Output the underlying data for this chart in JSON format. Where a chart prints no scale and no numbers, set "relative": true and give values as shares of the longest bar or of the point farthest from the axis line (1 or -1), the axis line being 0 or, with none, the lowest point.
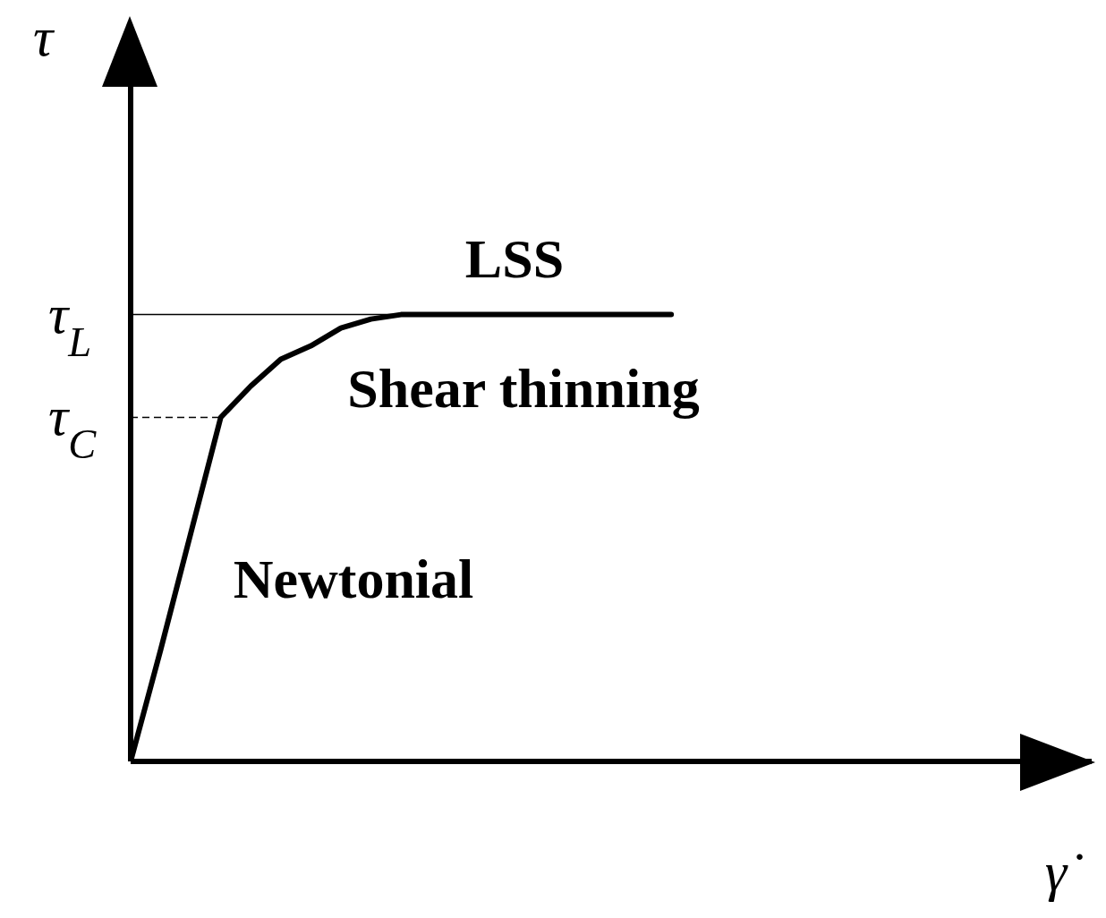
{
  "chart_data": {
    "type": "line",
    "relative": true,
    "marker": "none",
    "line_style": "solid",
    "ylabel": "τ",
    "xlabel": "γ̇",
    "categories": [
      null,
      null,
      null,
      null,
      null,
      null,
      null,
      null,
      null,
      null,
      null,
      null,
      null,
      null,
      null,
      null,
      null,
      null,
      null,
      null,
      null,
      null,
      null,
      null,
      null,
      null,
      null,
      null,
      null,
      null,
      null,
      null,
      null
    ],
    "series": [
      {
        "color": "#000000",
        "values": [
          0,
          0.25,
          0.51,
          0.77,
          0.84,
          0.9,
          0.93,
          0.97,
          0.99,
          1,
          1,
          1,
          1,
          1,
          1,
          1,
          1,
          1,
          1,
          null,
          null,
          null,
          null,
          null,
          null,
          null,
          null,
          null,
          null,
          null,
          null,
          null,
          null
        ]
      }
    ],
    "ref_lines": [
      {
        "axis": "y",
        "value": 1,
        "label": "τ$_{L}$",
        "color": "#000000",
        "line_style": "solid"
      },
      {
        "axis": "y",
        "value": 0.77,
        "label": "τ$_{C}$",
        "color": "#000000",
        "line_style": "dashed"
      }
    ],
    "annotations": [
      "LSS",
      "Shear thinning",
      "Newtonial"
    ]
  }
}
